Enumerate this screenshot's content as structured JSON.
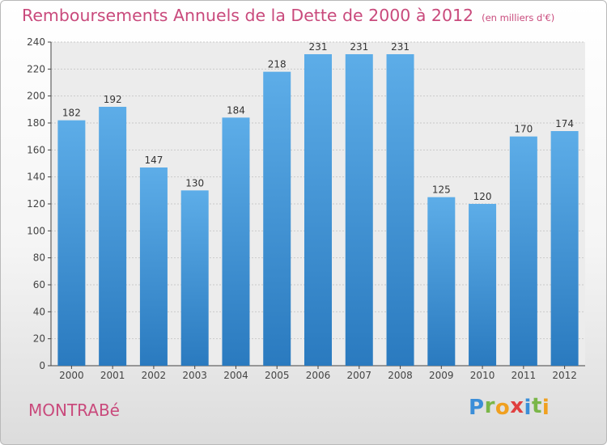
{
  "title": "Remboursements Annuels de la Dette de 2000 à 2012",
  "subtitle": "(en milliers d'€)",
  "commune": "MONTRABé",
  "brand": {
    "letters": [
      "P",
      "r",
      "o",
      "x",
      "i",
      "t",
      "i"
    ],
    "colors": [
      "#3b8ed8",
      "#7ab648",
      "#f0a020",
      "#e04040",
      "#3b8ed8",
      "#7ab648",
      "#f0a020"
    ]
  },
  "colors": {
    "bar_top": "#5dade8",
    "bar_bottom": "#2a7abf",
    "title": "#c94a7c",
    "axis": "#444444",
    "grid": "#c9c9c9"
  },
  "chart_data": {
    "type": "bar",
    "categories": [
      "2000",
      "2001",
      "2002",
      "2003",
      "2004",
      "2005",
      "2006",
      "2007",
      "2008",
      "2009",
      "2010",
      "2011",
      "2012"
    ],
    "values": [
      182,
      192,
      147,
      130,
      184,
      218,
      231,
      231,
      231,
      125,
      120,
      170,
      174
    ],
    "ylim": [
      0,
      240
    ],
    "yticks": [
      0,
      20,
      40,
      60,
      80,
      100,
      120,
      140,
      160,
      180,
      200,
      220,
      240
    ],
    "grid": true,
    "data_labels": true
  }
}
